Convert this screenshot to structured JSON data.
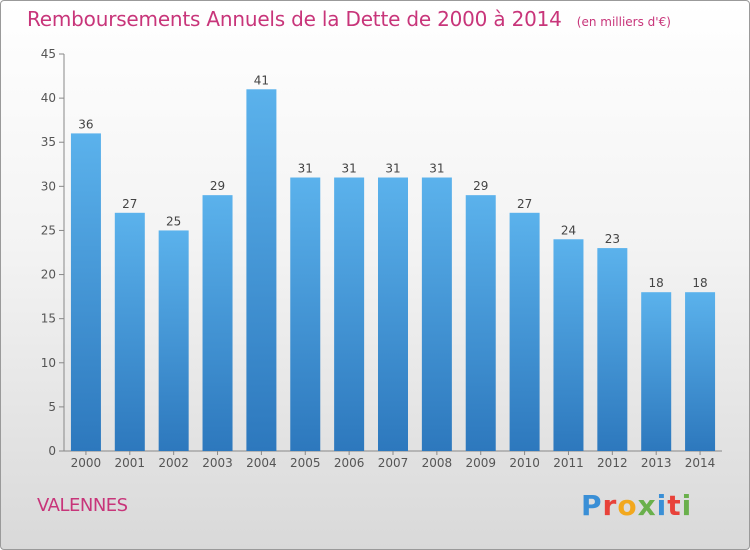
{
  "title": "Remboursements Annuels de la Dette de 2000 à 2014",
  "unit": "(en milliers d'€)",
  "town": "VALENNES",
  "logo_text": "Proxiti",
  "logo_colors": [
    "#3a8fd6",
    "#e8423a",
    "#f2a81d",
    "#6ab04c",
    "#3a8fd6",
    "#e8423a",
    "#6ab04c"
  ],
  "colors": {
    "bar_top": "#5bb2ec",
    "bar_bottom": "#2d78bd",
    "title": "#c8357a",
    "axis": "#555555"
  },
  "chart_data": {
    "type": "bar",
    "categories": [
      "2000",
      "2001",
      "2002",
      "2003",
      "2004",
      "2005",
      "2006",
      "2007",
      "2008",
      "2009",
      "2010",
      "2011",
      "2012",
      "2013",
      "2014"
    ],
    "values": [
      36,
      27,
      25,
      29,
      41,
      31,
      31,
      31,
      31,
      29,
      27,
      24,
      23,
      18,
      18
    ],
    "ylim": [
      0,
      45
    ],
    "yticks": [
      0,
      5,
      10,
      15,
      20,
      25,
      30,
      35,
      40,
      45
    ],
    "grid": false,
    "data_labels": true
  }
}
